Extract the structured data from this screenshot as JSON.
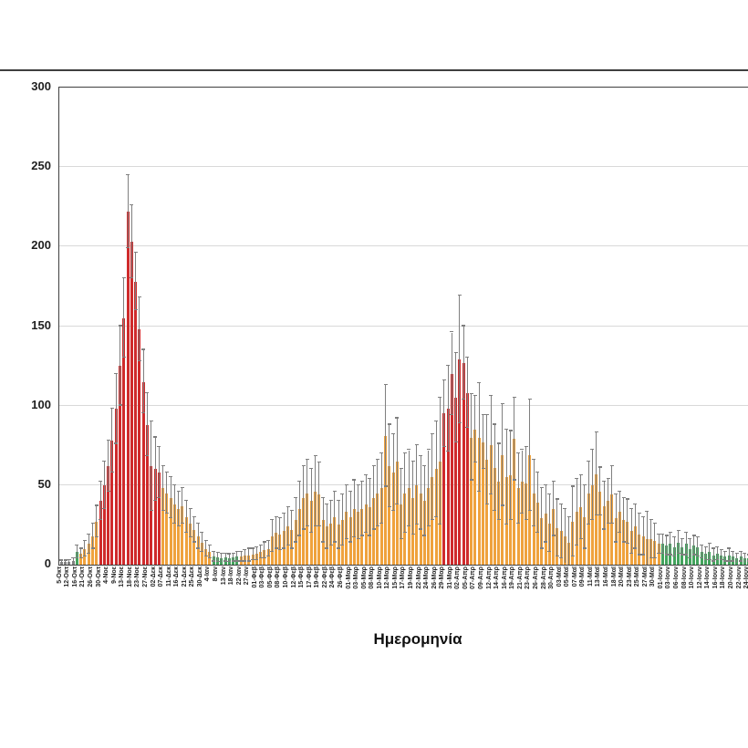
{
  "frame": {
    "top_rule_color": "#3f3f3f"
  },
  "chart_data": {
    "type": "bar",
    "title": "",
    "xlabel": "Ημερομηνία",
    "ylabel": "",
    "ylim": [
      0,
      300
    ],
    "yticks": [
      0,
      50,
      100,
      150,
      200,
      250,
      300
    ],
    "grid": true,
    "legend": null,
    "error_bars": "symmetric, upper value listed",
    "label_every_n_bars": 2,
    "colors": {
      "r": "#cf2a2b",
      "o": "#efa23d",
      "g": "#42a35c",
      "y": "#7f7f7f",
      "error": "#7f7f7f",
      "grid": "#d9d9d9",
      "axis": "#3f3f3f",
      "text": "#1f1f1f"
    },
    "x_labels": [
      "5-Οκτ",
      "12-Οκτ",
      "16-Οκτ",
      "21-Οκτ",
      "26-Οκτ",
      "30-Οκτ",
      "4-Νοε",
      "9-Νοε",
      "13-Νοε",
      "18-Νοε",
      "23-Νοε",
      "27-Νοε",
      "02-Δεκ",
      "07-Δεκ",
      "11-Δεκ",
      "16-Δεκ",
      "21-Δεκ",
      "25-Δεκ",
      "30-Δεκ",
      "4-Ιαν",
      "8-Ιαν",
      "13-Ιαν",
      "18-Ιαν",
      "22-Ιαν",
      "27-Ιαν",
      "01-Φεβ",
      "03-Φεβ",
      "05-Φεβ",
      "08-Φεβ",
      "10-Φεβ",
      "12-Φεβ",
      "15-Φεβ",
      "17-Φεβ",
      "19-Φεβ",
      "22-Φεβ",
      "24-Φεβ",
      "26-Φεβ",
      "01-Μαρ",
      "03-Μαρ",
      "05-Μαρ",
      "08-Μαρ",
      "10-Μαρ",
      "12-Μαρ",
      "15-Μαρ",
      "17-Μαρ",
      "19-Μαρ",
      "22-Μαρ",
      "24-Μαρ",
      "26-Μαρ",
      "29-Μαρ",
      "31-Μαρ",
      "02-Απρ",
      "05-Απρ",
      "07-Απρ",
      "09-Απρ",
      "12-Απρ",
      "14-Απρ",
      "16-Απρ",
      "19-Απρ",
      "21-Απρ",
      "23-Απρ",
      "26-Απρ",
      "28-Απρ",
      "30-Απρ",
      "03-Μαϊ",
      "05-Μαϊ",
      "07-Μαϊ",
      "09-Μαϊ",
      "11-Μαϊ",
      "13-Μαϊ",
      "16-Μαϊ",
      "18-Μαϊ",
      "20-Μαϊ",
      "23-Μαϊ",
      "25-Μαϊ",
      "27-Μαϊ",
      "30-Μαϊ",
      "01-Ιουν",
      "03-Ιουν",
      "06-Ιουν",
      "08-Ιουν",
      "10-Ιουν",
      "12-Ιουν",
      "14-Ιουν",
      "16-Ιουν",
      "18-Ιουν",
      "20-Ιουν",
      "22-Ιουν",
      "24-Ιουν"
    ],
    "bars": [
      [
        1.5,
        2.5,
        "y"
      ],
      [
        1.5,
        2.5,
        "y"
      ],
      [
        2,
        3,
        "y"
      ],
      [
        2.5,
        4,
        "y"
      ],
      [
        8,
        12,
        "g"
      ],
      [
        7,
        10,
        "o"
      ],
      [
        10,
        15,
        "o"
      ],
      [
        13,
        19,
        "o"
      ],
      [
        18,
        26,
        "o"
      ],
      [
        27,
        37,
        "o"
      ],
      [
        40,
        52,
        "r"
      ],
      [
        50,
        65,
        "r"
      ],
      [
        62,
        78,
        "r"
      ],
      [
        78,
        98,
        "r"
      ],
      [
        98,
        120,
        "r"
      ],
      [
        125,
        150,
        "r"
      ],
      [
        155,
        180,
        "r"
      ],
      [
        222,
        245,
        "r"
      ],
      [
        203,
        226,
        "r"
      ],
      [
        178,
        196,
        "r"
      ],
      [
        148,
        168,
        "r"
      ],
      [
        115,
        135,
        "r"
      ],
      [
        88,
        108,
        "r"
      ],
      [
        62,
        90,
        "r"
      ],
      [
        60,
        80,
        "r"
      ],
      [
        58,
        74,
        "r"
      ],
      [
        48,
        62,
        "o"
      ],
      [
        45,
        58,
        "o"
      ],
      [
        42,
        55,
        "o"
      ],
      [
        38,
        50,
        "o"
      ],
      [
        35,
        46,
        "o"
      ],
      [
        37,
        48,
        "o"
      ],
      [
        30,
        40,
        "o"
      ],
      [
        26,
        35,
        "o"
      ],
      [
        22,
        30,
        "o"
      ],
      [
        18,
        26,
        "o"
      ],
      [
        14,
        20,
        "o"
      ],
      [
        10,
        15,
        "o"
      ],
      [
        8,
        12,
        "o"
      ],
      [
        5,
        8,
        "g"
      ],
      [
        4.5,
        7.5,
        "g"
      ],
      [
        4,
        7,
        "g"
      ],
      [
        4.5,
        7,
        "g"
      ],
      [
        4,
        6.5,
        "g"
      ],
      [
        4.5,
        7,
        "g"
      ],
      [
        5,
        8,
        "g"
      ],
      [
        5,
        8,
        "o"
      ],
      [
        5.5,
        9,
        "o"
      ],
      [
        6,
        10,
        "o"
      ],
      [
        6.5,
        10,
        "o"
      ],
      [
        7,
        11,
        "o"
      ],
      [
        8,
        12,
        "o"
      ],
      [
        9,
        14,
        "o"
      ],
      [
        10,
        15,
        "o"
      ],
      [
        18,
        28,
        "o"
      ],
      [
        20,
        30,
        "o"
      ],
      [
        19,
        29,
        "o"
      ],
      [
        21,
        32,
        "o"
      ],
      [
        24,
        36,
        "o"
      ],
      [
        22,
        34,
        "o"
      ],
      [
        28,
        42,
        "o"
      ],
      [
        35,
        52,
        "o"
      ],
      [
        42,
        62,
        "o"
      ],
      [
        45,
        66,
        "o"
      ],
      [
        40,
        60,
        "o"
      ],
      [
        46,
        68,
        "o"
      ],
      [
        44,
        64,
        "o"
      ],
      [
        28,
        42,
        "o"
      ],
      [
        24,
        38,
        "o"
      ],
      [
        26,
        40,
        "o"
      ],
      [
        30,
        46,
        "o"
      ],
      [
        25,
        40,
        "o"
      ],
      [
        28,
        44,
        "o"
      ],
      [
        33,
        50,
        "o"
      ],
      [
        30,
        46,
        "o"
      ],
      [
        35,
        53,
        "o"
      ],
      [
        33,
        50,
        "o"
      ],
      [
        35,
        52,
        "o"
      ],
      [
        38,
        56,
        "o"
      ],
      [
        36,
        54,
        "o"
      ],
      [
        42,
        62,
        "o"
      ],
      [
        45,
        66,
        "o"
      ],
      [
        48,
        70,
        "o"
      ],
      [
        81,
        113,
        "o"
      ],
      [
        62,
        88,
        "o"
      ],
      [
        58,
        82,
        "o"
      ],
      [
        65,
        92,
        "o"
      ],
      [
        38,
        60,
        "o"
      ],
      [
        45,
        70,
        "o"
      ],
      [
        48,
        72,
        "o"
      ],
      [
        42,
        65,
        "o"
      ],
      [
        50,
        75,
        "o"
      ],
      [
        45,
        68,
        "o"
      ],
      [
        40,
        62,
        "o"
      ],
      [
        48,
        72,
        "o"
      ],
      [
        55,
        82,
        "o"
      ],
      [
        60,
        90,
        "o"
      ],
      [
        65,
        105,
        "o"
      ],
      [
        95,
        116,
        "r"
      ],
      [
        98,
        125,
        "r"
      ],
      [
        120,
        146,
        "r"
      ],
      [
        105,
        133,
        "r"
      ],
      [
        129,
        169,
        "r"
      ],
      [
        127,
        150,
        "r"
      ],
      [
        108,
        130,
        "r"
      ],
      [
        80,
        107,
        "o"
      ],
      [
        85,
        106,
        "o"
      ],
      [
        80,
        114,
        "o"
      ],
      [
        77,
        94,
        "o"
      ],
      [
        66,
        94,
        "o"
      ],
      [
        75,
        106,
        "o"
      ],
      [
        61,
        88,
        "o"
      ],
      [
        52,
        76,
        "o"
      ],
      [
        69,
        101,
        "o"
      ],
      [
        55,
        85,
        "o"
      ],
      [
        56,
        84,
        "o"
      ],
      [
        79,
        105,
        "o"
      ],
      [
        48,
        70,
        "o"
      ],
      [
        52,
        72,
        "o"
      ],
      [
        51,
        74,
        "o"
      ],
      [
        69,
        104,
        "o"
      ],
      [
        45,
        66,
        "o"
      ],
      [
        39,
        58,
        "o"
      ],
      [
        29,
        48,
        "o"
      ],
      [
        32,
        50,
        "o"
      ],
      [
        26,
        44,
        "o"
      ],
      [
        35,
        52,
        "o"
      ],
      [
        23,
        41,
        "o"
      ],
      [
        21,
        38,
        "o"
      ],
      [
        18,
        35,
        "o"
      ],
      [
        14,
        30,
        "o"
      ],
      [
        27,
        49,
        "o"
      ],
      [
        33,
        54,
        "o"
      ],
      [
        36,
        56,
        "o"
      ],
      [
        30,
        50,
        "o"
      ],
      [
        45,
        65,
        "o"
      ],
      [
        50,
        72,
        "o"
      ],
      [
        57,
        83,
        "o"
      ],
      [
        46,
        61,
        "o"
      ],
      [
        37,
        52,
        "o"
      ],
      [
        40,
        54,
        "o"
      ],
      [
        44,
        62,
        "o"
      ],
      [
        29,
        44,
        "o"
      ],
      [
        33,
        46,
        "o"
      ],
      [
        28,
        42,
        "o"
      ],
      [
        27,
        41,
        "o"
      ],
      [
        21,
        35,
        "o"
      ],
      [
        24,
        38,
        "o"
      ],
      [
        19,
        32,
        "o"
      ],
      [
        18,
        30,
        "o"
      ],
      [
        16,
        33,
        "o"
      ],
      [
        16,
        28,
        "o"
      ],
      [
        15,
        26,
        "o"
      ],
      [
        13,
        19,
        "o"
      ],
      [
        13,
        19,
        "g"
      ],
      [
        12,
        18,
        "g"
      ],
      [
        13,
        20,
        "g"
      ],
      [
        11,
        17,
        "g"
      ],
      [
        14,
        21,
        "g"
      ],
      [
        11,
        16,
        "g"
      ],
      [
        13,
        20,
        "g"
      ],
      [
        10,
        16,
        "g"
      ],
      [
        12,
        18,
        "g"
      ],
      [
        11,
        17,
        "g"
      ],
      [
        8,
        12,
        "g"
      ],
      [
        7,
        11,
        "g"
      ],
      [
        8,
        13,
        "g"
      ],
      [
        6,
        10,
        "g"
      ],
      [
        7,
        11,
        "g"
      ],
      [
        6,
        9,
        "g"
      ],
      [
        5,
        8,
        "g"
      ],
      [
        6,
        10,
        "g"
      ],
      [
        5,
        8,
        "g"
      ],
      [
        4,
        7,
        "g"
      ],
      [
        5,
        8,
        "g"
      ],
      [
        4,
        7,
        "g"
      ],
      [
        4,
        6,
        "g"
      ],
      [
        4,
        6,
        "g"
      ]
    ]
  }
}
